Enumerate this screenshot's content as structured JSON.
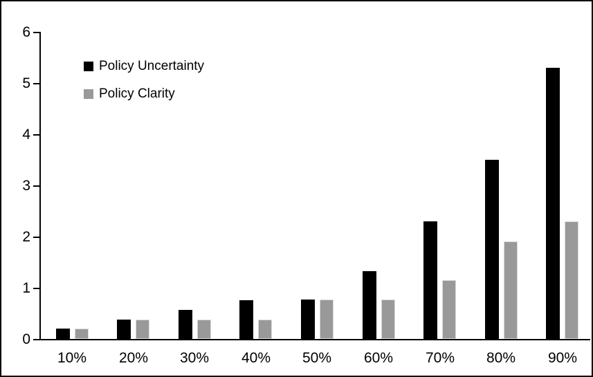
{
  "chart_data": {
    "type": "bar",
    "title": "",
    "xlabel": "",
    "ylabel": "",
    "categories": [
      "10%",
      "20%",
      "30%",
      "40%",
      "50%",
      "60%",
      "70%",
      "80%",
      "90%"
    ],
    "series": [
      {
        "name": "Policy Uncertainty",
        "color": "#000000",
        "values": [
          0.2,
          0.38,
          0.57,
          0.76,
          0.77,
          1.33,
          2.3,
          3.5,
          5.3
        ]
      },
      {
        "name": "Policy Clarity",
        "color": "#999999",
        "values": [
          0.2,
          0.38,
          0.38,
          0.38,
          0.77,
          0.77,
          1.15,
          1.9,
          2.3
        ]
      }
    ],
    "ylim": [
      0,
      6
    ],
    "yticks": [
      "0",
      "1",
      "2",
      "3",
      "4",
      "5",
      "6"
    ],
    "grid": false,
    "legend_position": "top-left-inside"
  },
  "colors": {
    "uncertainty_bar": "#000000",
    "clarity_bar": "#999999",
    "axis": "#000000",
    "frame_border": "#000000",
    "background": "#ffffff"
  }
}
